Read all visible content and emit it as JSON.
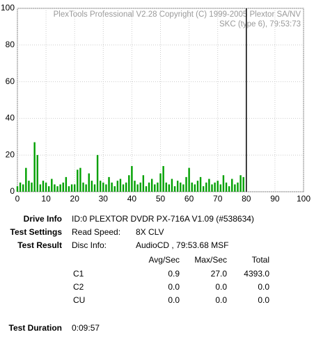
{
  "chart_data": {
    "type": "bar",
    "annotations": [
      "PlexTools Professional V2.28 Copyright (C) 1999-2005 Plextor SA/NV",
      "SKC (type 6), 79:53:73"
    ],
    "x": [
      0,
      1,
      2,
      3,
      4,
      5,
      6,
      7,
      8,
      9,
      10,
      11,
      12,
      13,
      14,
      15,
      16,
      17,
      18,
      19,
      20,
      21,
      22,
      23,
      24,
      25,
      26,
      27,
      28,
      29,
      30,
      31,
      32,
      33,
      34,
      35,
      36,
      37,
      38,
      39,
      40,
      41,
      42,
      43,
      44,
      45,
      46,
      47,
      48,
      49,
      50,
      51,
      52,
      53,
      54,
      55,
      56,
      57,
      58,
      59,
      60,
      61,
      62,
      63,
      64,
      65,
      66,
      67,
      68,
      69,
      70,
      71,
      72,
      73,
      74,
      75,
      76,
      77,
      78,
      79
    ],
    "values": [
      3,
      5,
      4,
      13,
      6,
      5,
      27,
      20,
      4,
      6,
      5,
      3,
      7,
      4,
      3,
      4,
      5,
      8,
      3,
      4,
      4,
      12,
      13,
      5,
      4,
      10,
      6,
      4,
      20,
      6,
      5,
      4,
      8,
      5,
      3,
      6,
      7,
      4,
      5,
      9,
      14,
      6,
      4,
      5,
      9,
      3,
      5,
      7,
      4,
      5,
      10,
      14,
      5,
      4,
      7,
      3,
      6,
      5,
      4,
      8,
      13,
      5,
      4,
      6,
      8,
      3,
      5,
      7,
      4,
      5,
      6,
      4,
      9,
      5,
      3,
      7,
      4,
      5,
      9,
      8
    ],
    "color": "#00a000",
    "vlines": [
      80
    ],
    "xlim": [
      0,
      100
    ],
    "xticks": [
      0,
      10,
      20,
      30,
      40,
      50,
      60,
      70,
      80,
      90,
      100
    ],
    "ylim": [
      0,
      100
    ],
    "yticks": [
      0,
      20,
      40,
      60,
      80,
      100
    ],
    "grid": true
  },
  "info": {
    "drive_info": {
      "label": "Drive Info",
      "value": "ID:0 PLEXTOR DVDR PX-716A V1.09 (#538634)"
    },
    "test_settings": {
      "label": "Test Settings",
      "key": "Read Speed:",
      "value": "8X CLV"
    },
    "test_result": {
      "label": "Test Result",
      "key": "Disc Info:",
      "value": "AudioCD , 79:53.68 MSF"
    },
    "table": {
      "header": [
        "Avg/Sec",
        "Max/Sec",
        "Total"
      ],
      "rows": [
        [
          "C1",
          "0.9",
          "27.0",
          "4393.0"
        ],
        [
          "C2",
          "0.0",
          "0.0",
          "0.0"
        ],
        [
          "CU",
          "0.0",
          "0.0",
          "0.0"
        ]
      ]
    },
    "test_duration": {
      "label": "Test Duration",
      "value": "0:09:57"
    }
  }
}
